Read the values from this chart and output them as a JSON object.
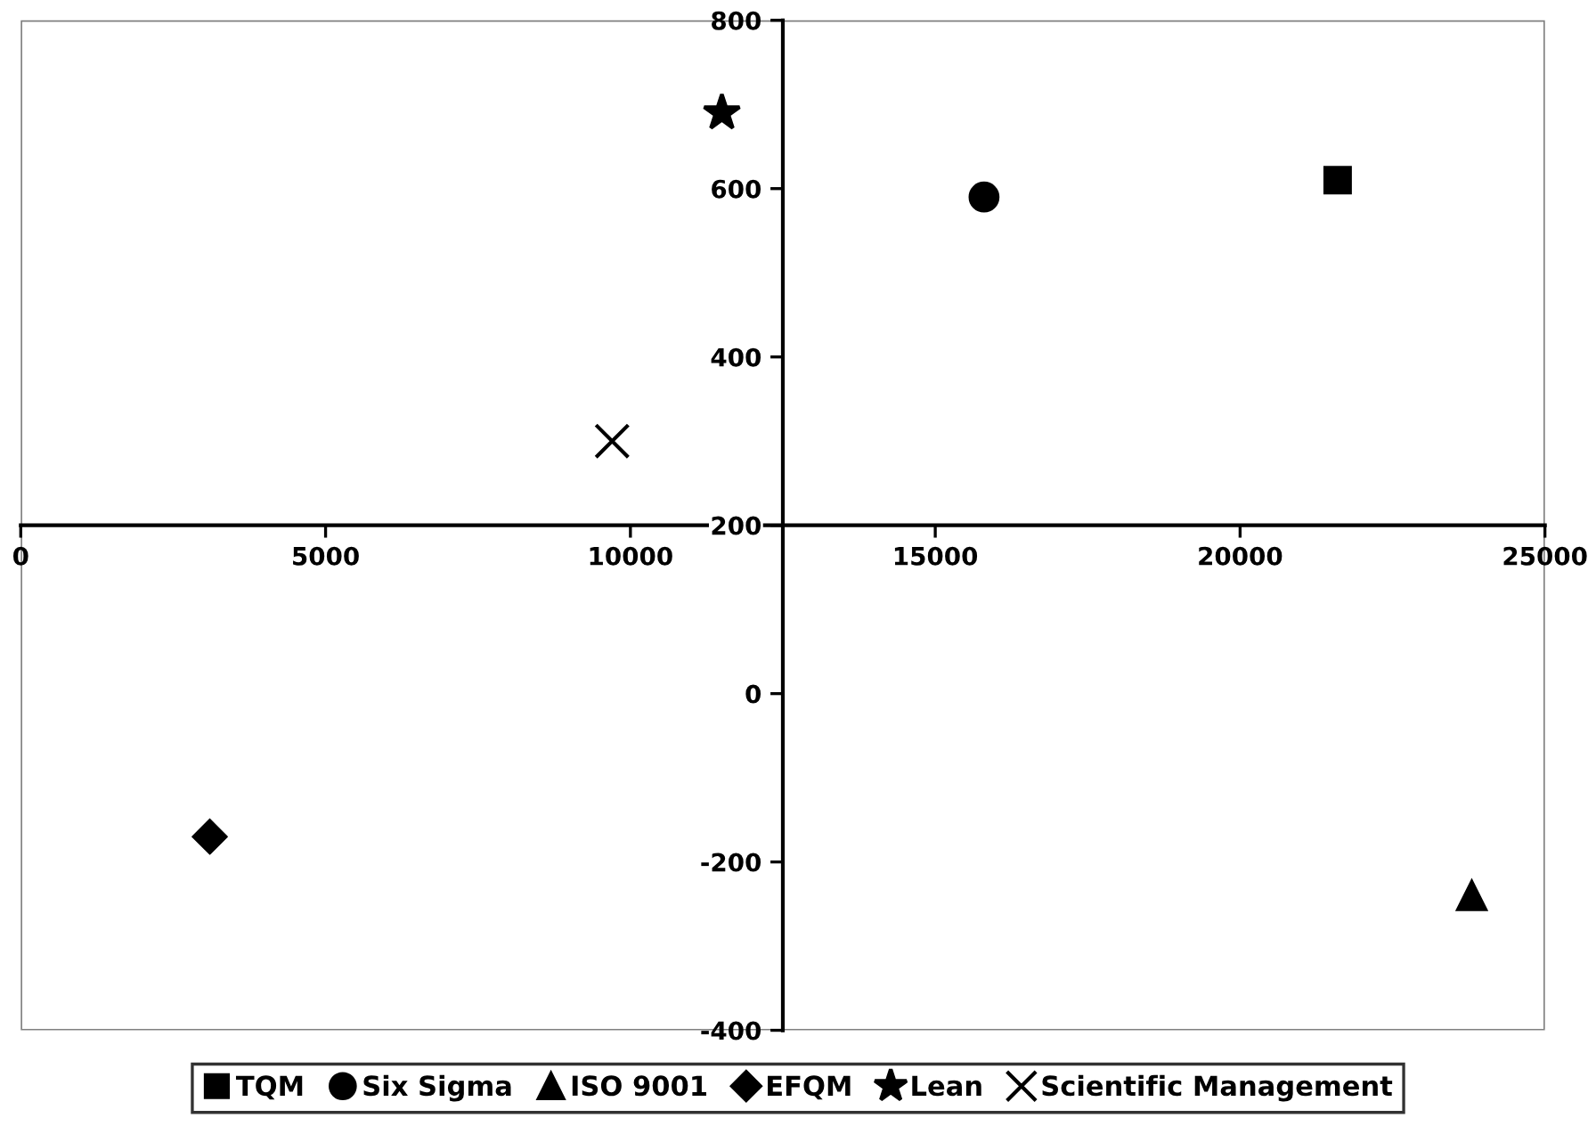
{
  "chart_data": {
    "type": "scatter",
    "xlim": [
      0,
      25000
    ],
    "xticks": [
      0,
      5000,
      10000,
      15000,
      20000,
      25000
    ],
    "ylim": [
      -400,
      800
    ],
    "yticks": [
      -400,
      -200,
      0,
      200,
      400,
      600,
      800
    ],
    "grid": false,
    "legend": "bottom",
    "series": [
      {
        "name": "TQM",
        "color": "#000000",
        "marker": "square",
        "x": [
          21600
        ],
        "values": [
          610
        ]
      },
      {
        "name": "Six Sigma",
        "color": "#000000",
        "marker": "circle",
        "x": [
          15800
        ],
        "values": [
          590
        ]
      },
      {
        "name": "ISO 9001",
        "color": "#000000",
        "marker": "triangle",
        "x": [
          23800
        ],
        "values": [
          -240
        ]
      },
      {
        "name": "EFQM",
        "color": "#000000",
        "marker": "diamond",
        "x": [
          3100
        ],
        "values": [
          -170
        ]
      },
      {
        "name": "Lean",
        "color": "#000000",
        "marker": "star",
        "x": [
          11500
        ],
        "values": [
          690
        ]
      },
      {
        "name": "Scientific Management",
        "color": "#000000",
        "marker": "cross",
        "x": [
          9700
        ],
        "values": [
          300
        ]
      }
    ]
  }
}
